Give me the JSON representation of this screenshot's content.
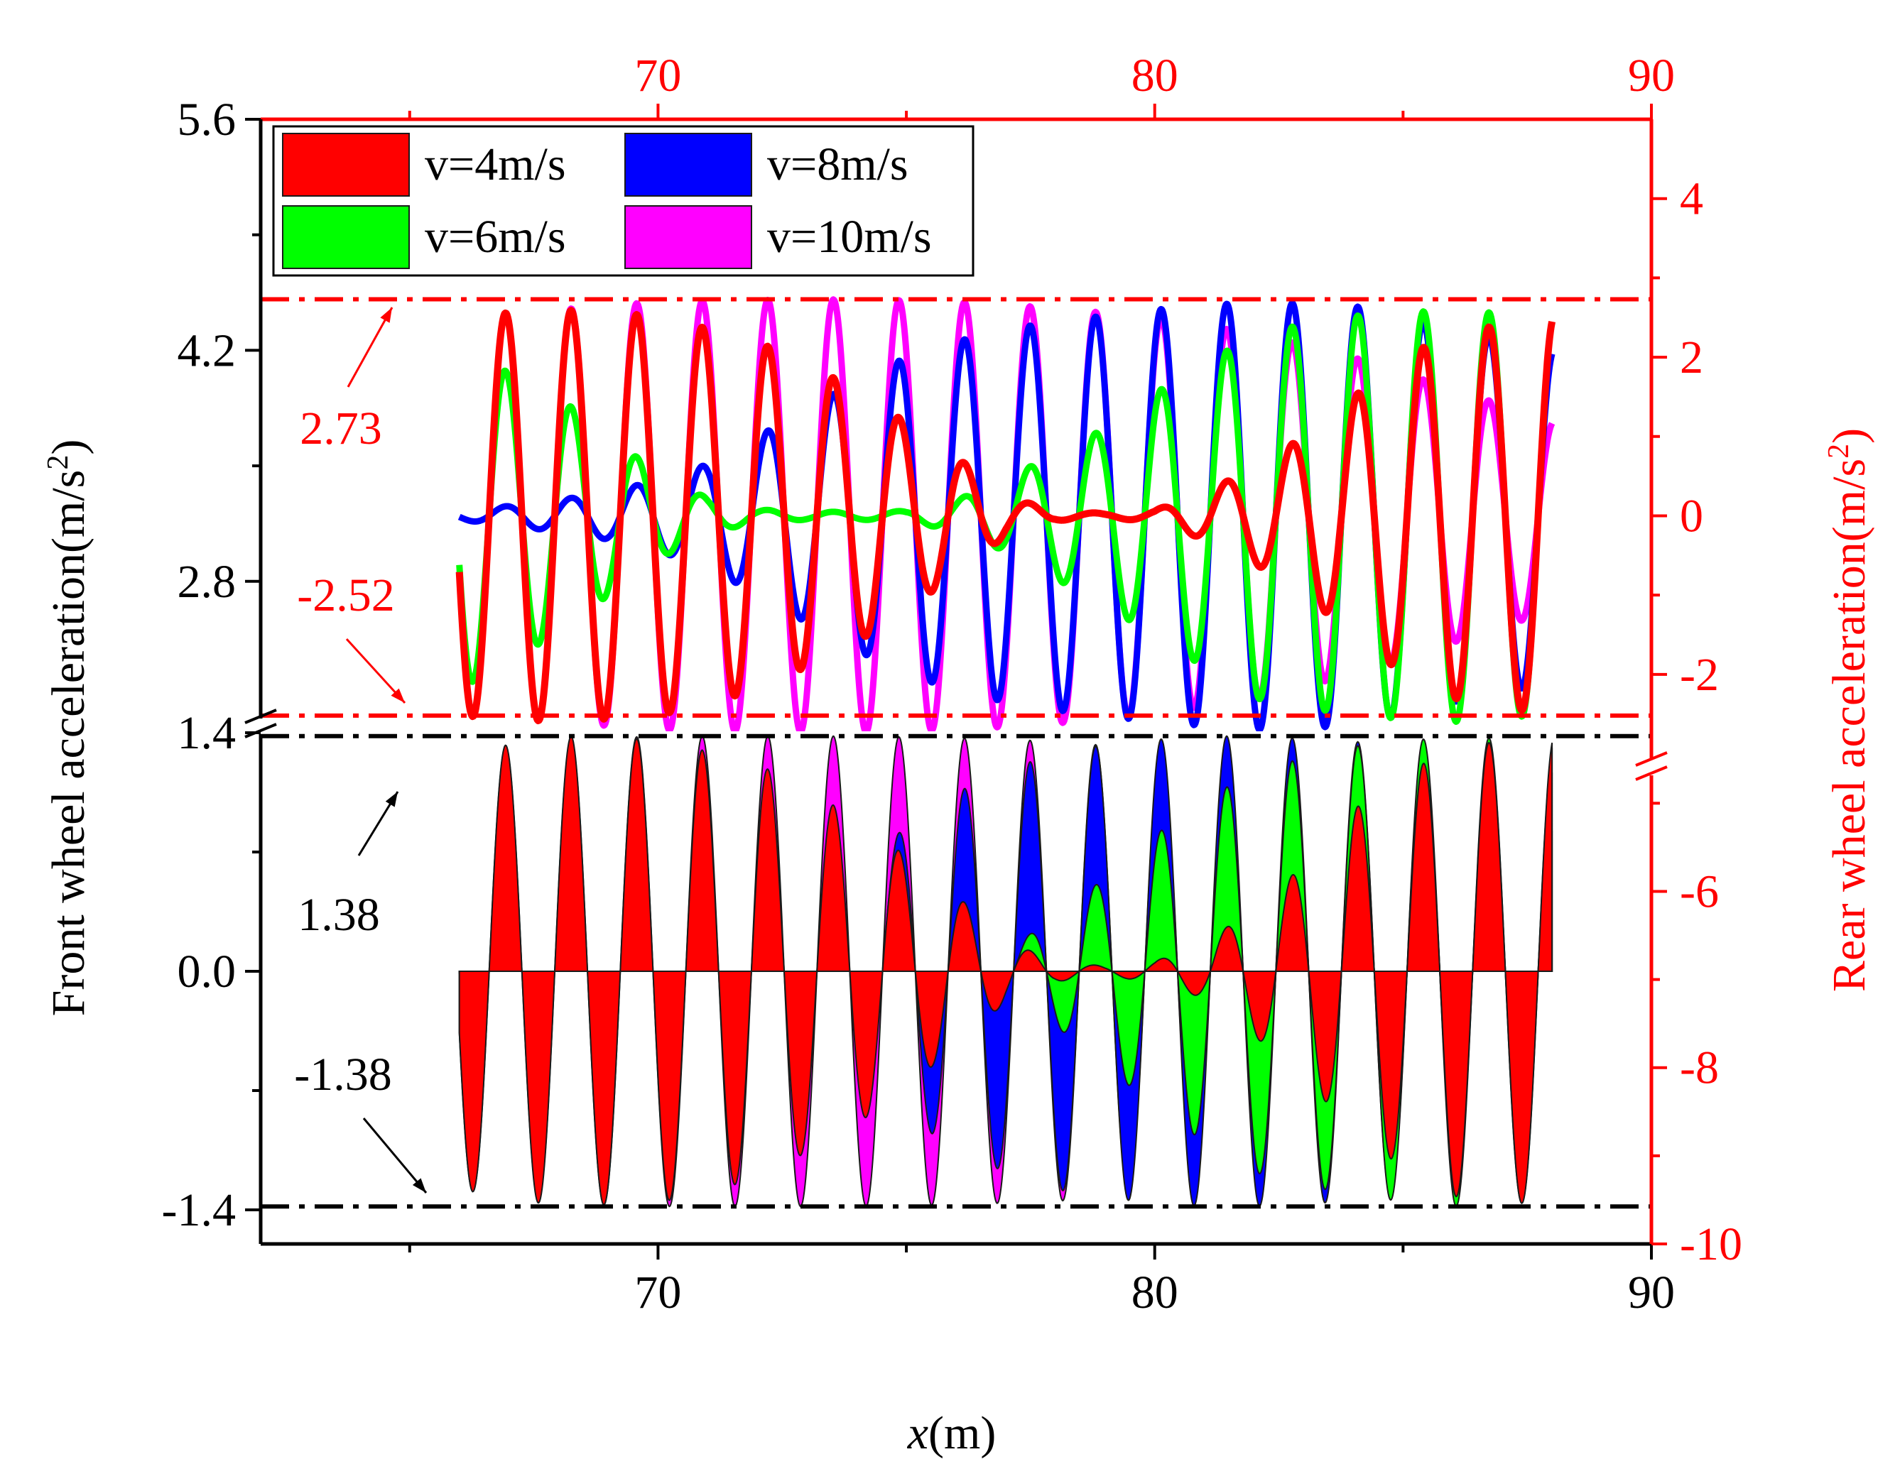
{
  "chart_data": {
    "type": "line",
    "xlabel_var": "x",
    "xlabel_unit": "(m)",
    "ylabel_left": "Front wheel acceleration(m/s",
    "ylabel_left_sup": "2",
    "ylabel_left_close": ")",
    "ylabel_right": "Rear wheel acceleration(m/s",
    "ylabel_right_sup": "2",
    "ylabel_right_close": ")",
    "x_range": [
      62,
      90
    ],
    "x_ticks": [
      "70",
      "80",
      "90"
    ],
    "top_x_ticks": [
      "70",
      "80",
      "90"
    ],
    "left_upper_range": [
      1.9,
      5.6
    ],
    "left_lower_range": [
      -1.6,
      1.4
    ],
    "left_ticks_upper": [
      "5.6",
      "4.2",
      "2.8"
    ],
    "left_ticks_lower": [
      "1.4",
      "0.0",
      "-1.4"
    ],
    "right_upper_range": [
      -2.7,
      5.0
    ],
    "right_lower_range": [
      -10,
      -4.2
    ],
    "right_ticks_upper": [
      "4",
      "2",
      "0",
      "-2"
    ],
    "right_ticks_lower": [
      "-6",
      "-8",
      "-10"
    ],
    "legend_placement": "top-left",
    "grid": false,
    "reference_lines": {
      "rear_max": 2.73,
      "rear_min": -2.52,
      "front_max": 1.38,
      "front_min": -1.38
    },
    "annotations": {
      "rear_max_label": "2.73",
      "rear_min_label": "-2.52",
      "front_max_label": "1.38",
      "front_min_label": "-1.38"
    },
    "wave": {
      "x_start": 66.0,
      "x_end": 88.0,
      "wavelength": 1.32,
      "phase_x": 66.6
    },
    "series": [
      {
        "name": "v=4m/s",
        "color": "#ff0000",
        "front_envelope_x": [
          66,
          68,
          70,
          72,
          74,
          76,
          77,
          78,
          79,
          80,
          81,
          82,
          83,
          84,
          85,
          86,
          88
        ],
        "front_envelope_amp": [
          1.28,
          1.38,
          1.36,
          1.22,
          0.9,
          0.45,
          0.18,
          0.06,
          0.03,
          0.06,
          0.16,
          0.38,
          0.62,
          0.95,
          1.15,
          1.32,
          1.38
        ],
        "rear_envelope_x": [
          66,
          68,
          70,
          72,
          74,
          76,
          77,
          78,
          79,
          80,
          81,
          82,
          83,
          84,
          85,
          86,
          88
        ],
        "rear_envelope_amp": [
          2.52,
          2.6,
          2.52,
          2.2,
          1.6,
          0.75,
          0.25,
          0.06,
          0.03,
          0.07,
          0.3,
          0.6,
          1.0,
          1.5,
          2.0,
          2.3,
          2.52
        ]
      },
      {
        "name": "v=6m/s",
        "color": "#00ff00",
        "front_envelope_x": [
          66,
          69,
          71,
          72,
          73,
          75,
          76,
          77,
          78,
          79,
          80,
          81,
          82,
          84,
          86,
          88
        ],
        "front_envelope_amp": [
          0.05,
          0.03,
          0.02,
          0.01,
          0.01,
          0.02,
          0.04,
          0.12,
          0.32,
          0.55,
          0.8,
          1.0,
          1.18,
          1.32,
          1.38,
          1.35
        ],
        "rear_envelope_x": [
          66,
          67,
          68,
          69,
          70,
          71,
          72,
          73,
          74,
          75,
          76,
          77,
          78,
          79,
          80,
          81,
          82,
          84,
          86,
          88
        ],
        "rear_envelope_amp": [
          2.2,
          1.8,
          1.5,
          1.0,
          0.55,
          0.22,
          0.08,
          0.05,
          0.05,
          0.06,
          0.2,
          0.45,
          0.8,
          1.1,
          1.55,
          1.9,
          2.3,
          2.52,
          2.6,
          2.5
        ]
      },
      {
        "name": "v=8m/s",
        "color": "#0000ff",
        "front_envelope_x": [
          66,
          71,
          72,
          73,
          74,
          75,
          76,
          77,
          78,
          79,
          80,
          81,
          82,
          84,
          86,
          88
        ],
        "front_envelope_amp": [
          0.02,
          0.05,
          0.15,
          0.35,
          0.6,
          0.85,
          1.05,
          1.18,
          1.28,
          1.33,
          1.36,
          1.38,
          1.38,
          1.35,
          1.28,
          1.2
        ],
        "rear_envelope_x": [
          66,
          68,
          69,
          70,
          71,
          72,
          73,
          74,
          75,
          76,
          77,
          78,
          80,
          82,
          84,
          86,
          88
        ],
        "rear_envelope_amp": [
          0.05,
          0.2,
          0.3,
          0.45,
          0.65,
          1.0,
          1.35,
          1.7,
          2.0,
          2.2,
          2.35,
          2.45,
          2.6,
          2.7,
          2.65,
          2.35,
          2.1
        ]
      },
      {
        "name": "v=10m/s",
        "color": "#ff00ff",
        "front_envelope_x": [
          66,
          68,
          70,
          72,
          74,
          76,
          78,
          80,
          82,
          84,
          86,
          88
        ],
        "front_envelope_amp": [
          1.28,
          1.36,
          1.38,
          1.38,
          1.38,
          1.37,
          1.35,
          1.3,
          1.22,
          1.1,
          0.95,
          0.85
        ],
        "rear_envelope_x": [
          66,
          68,
          70,
          72,
          74,
          76,
          78,
          80,
          82,
          84,
          86,
          88
        ],
        "rear_envelope_amp": [
          2.5,
          2.6,
          2.7,
          2.72,
          2.73,
          2.7,
          2.62,
          2.5,
          2.3,
          2.0,
          1.6,
          1.2
        ]
      }
    ]
  }
}
